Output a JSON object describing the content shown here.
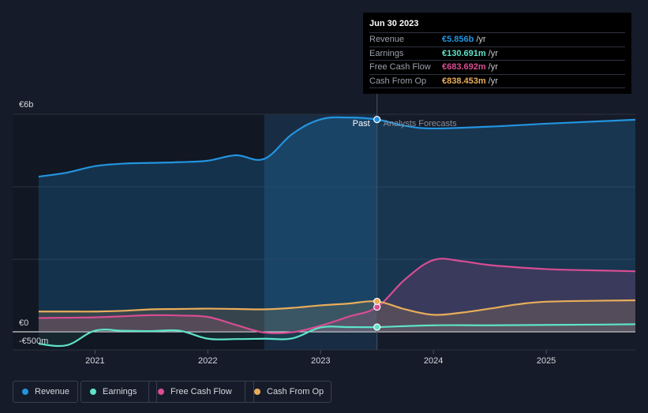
{
  "chart_data": {
    "type": "area",
    "y_label_top": "€6b",
    "y_label_zero": "€0",
    "y_label_bottom": "-€500m",
    "ylim": [
      -500,
      6000
    ],
    "x_ticks": [
      {
        "label": "2021",
        "x": 2021.0
      },
      {
        "label": "2022",
        "x": 2022.0
      },
      {
        "label": "2023",
        "x": 2023.0
      },
      {
        "label": "2024",
        "x": 2024.0
      },
      {
        "label": "2025",
        "x": 2025.0
      }
    ],
    "xlim": [
      2020.27,
      2025.79
    ],
    "divider_x": 2023.5,
    "past_label": "Past",
    "forecast_label": "Analysts Forecasts",
    "highlight_range": [
      2022.5,
      2023.5
    ],
    "series": [
      {
        "name": "Revenue",
        "color": "#2394df",
        "points": [
          [
            2020.5,
            4280
          ],
          [
            2020.75,
            4390
          ],
          [
            2021.0,
            4570
          ],
          [
            2021.25,
            4640
          ],
          [
            2021.5,
            4660
          ],
          [
            2021.75,
            4680
          ],
          [
            2022.0,
            4720
          ],
          [
            2022.25,
            4870
          ],
          [
            2022.5,
            4770
          ],
          [
            2022.75,
            5460
          ],
          [
            2023.0,
            5860
          ],
          [
            2023.25,
            5910
          ],
          [
            2023.5,
            5856
          ],
          [
            2023.75,
            5680
          ],
          [
            2024.0,
            5610
          ],
          [
            2024.5,
            5660
          ],
          [
            2025.0,
            5740
          ],
          [
            2025.5,
            5810
          ],
          [
            2025.79,
            5850
          ]
        ]
      },
      {
        "name": "Earnings",
        "color": "#5ee3c8",
        "points": [
          [
            2020.5,
            -330
          ],
          [
            2020.75,
            -370
          ],
          [
            2021.0,
            30
          ],
          [
            2021.25,
            30
          ],
          [
            2021.5,
            20
          ],
          [
            2021.75,
            30
          ],
          [
            2022.0,
            -190
          ],
          [
            2022.25,
            -200
          ],
          [
            2022.5,
            -190
          ],
          [
            2022.75,
            -180
          ],
          [
            2023.0,
            120
          ],
          [
            2023.25,
            130
          ],
          [
            2023.5,
            130.691
          ],
          [
            2024.0,
            180
          ],
          [
            2024.5,
            180
          ],
          [
            2025.0,
            190
          ],
          [
            2025.5,
            200
          ],
          [
            2025.79,
            210
          ]
        ]
      },
      {
        "name": "Free Cash Flow",
        "color": "#d84d93",
        "points": [
          [
            2020.5,
            380
          ],
          [
            2020.75,
            390
          ],
          [
            2021.0,
            400
          ],
          [
            2021.25,
            430
          ],
          [
            2021.5,
            460
          ],
          [
            2021.75,
            450
          ],
          [
            2022.0,
            410
          ],
          [
            2022.25,
            190
          ],
          [
            2022.5,
            -20
          ],
          [
            2022.75,
            -10
          ],
          [
            2023.0,
            170
          ],
          [
            2023.25,
            420
          ],
          [
            2023.5,
            683.692
          ],
          [
            2023.75,
            1450
          ],
          [
            2024.0,
            1980
          ],
          [
            2024.25,
            1950
          ],
          [
            2024.5,
            1840
          ],
          [
            2025.0,
            1730
          ],
          [
            2025.5,
            1690
          ],
          [
            2025.79,
            1670
          ]
        ]
      },
      {
        "name": "Cash From Op",
        "color": "#e8ad5a",
        "points": [
          [
            2020.5,
            560
          ],
          [
            2020.75,
            560
          ],
          [
            2021.0,
            560
          ],
          [
            2021.25,
            580
          ],
          [
            2021.5,
            620
          ],
          [
            2021.75,
            630
          ],
          [
            2022.0,
            640
          ],
          [
            2022.25,
            630
          ],
          [
            2022.5,
            620
          ],
          [
            2022.75,
            660
          ],
          [
            2023.0,
            730
          ],
          [
            2023.25,
            780
          ],
          [
            2023.5,
            838.453
          ],
          [
            2023.75,
            620
          ],
          [
            2024.0,
            470
          ],
          [
            2024.25,
            530
          ],
          [
            2024.5,
            640
          ],
          [
            2024.75,
            760
          ],
          [
            2025.0,
            830
          ],
          [
            2025.5,
            860
          ],
          [
            2025.79,
            870
          ]
        ]
      }
    ]
  },
  "tooltip": {
    "date": "Jun 30 2023",
    "rows": [
      {
        "label": "Revenue",
        "value": "€5.856b",
        "unit": "/yr",
        "color": "#2394df"
      },
      {
        "label": "Earnings",
        "value": "€130.691m",
        "unit": "/yr",
        "color": "#5ee3c8"
      },
      {
        "label": "Free Cash Flow",
        "value": "€683.692m",
        "unit": "/yr",
        "color": "#d84d93"
      },
      {
        "label": "Cash From Op",
        "value": "€838.453m",
        "unit": "/yr",
        "color": "#e8ad5a"
      }
    ]
  },
  "legend": [
    {
      "label": "Revenue",
      "color": "#2394df"
    },
    {
      "label": "Earnings",
      "color": "#5ee3c8"
    },
    {
      "label": "Free Cash Flow",
      "color": "#d84d93"
    },
    {
      "label": "Cash From Op",
      "color": "#e8ad5a"
    }
  ]
}
